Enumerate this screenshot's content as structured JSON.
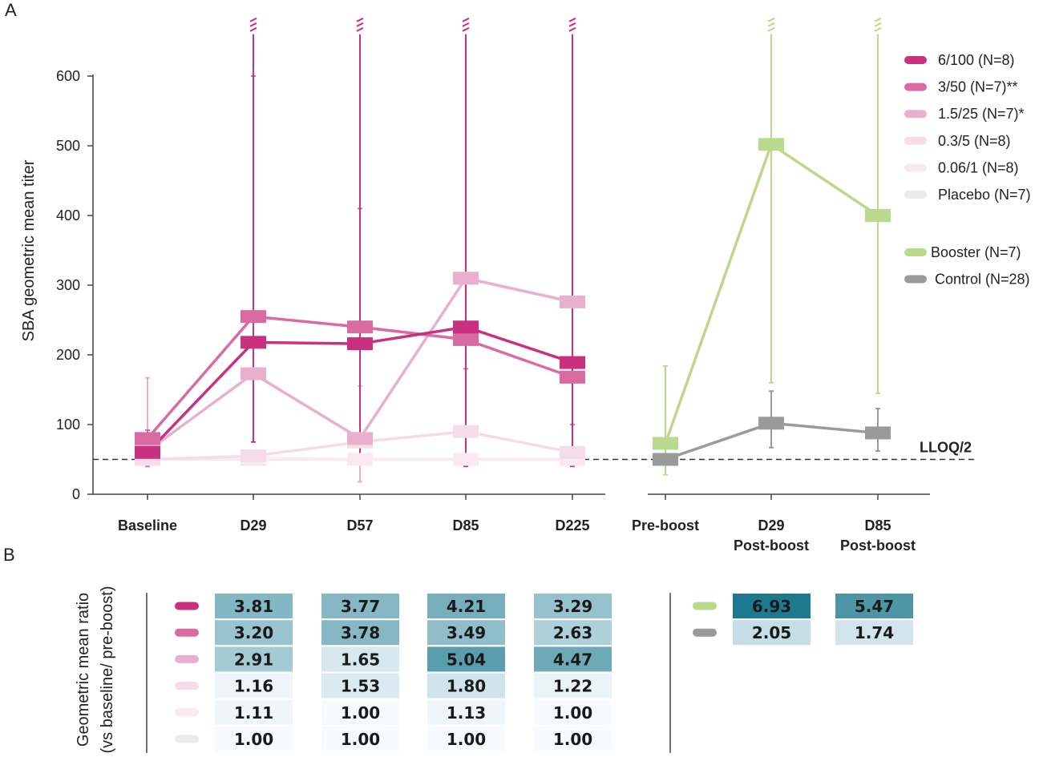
{
  "panel_labels": {
    "a": "A",
    "b": "B"
  },
  "chart_data": [
    {
      "type": "line",
      "title": "",
      "ylabel": "SBA geometric mean titer",
      "xlabel": "",
      "ylim": [
        0,
        600
      ],
      "yticks": [
        0,
        100,
        200,
        300,
        400,
        500,
        600
      ],
      "lloq": {
        "value": 50,
        "label": "LLOQ/2"
      },
      "left_categories": [
        "Baseline",
        "D29",
        "D57",
        "D85",
        "D225"
      ],
      "right_categories": [
        [
          "Pre-boost"
        ],
        [
          "D29",
          "Post-boost"
        ],
        [
          "D85",
          "Post-boost"
        ]
      ],
      "series": [
        {
          "name": "6/100 (N=8)",
          "color": "#c9307f",
          "side": "left",
          "values": [
            60,
            218,
            216,
            240,
            189
          ],
          "error_high": [
            null,
            660,
            660,
            660,
            660
          ],
          "error_low": [
            null,
            75,
            50,
            40,
            40
          ],
          "truncated": [
            false,
            true,
            true,
            true,
            true
          ]
        },
        {
          "name": "3/50 (N=7)**",
          "color": "#d96ba2",
          "side": "left",
          "values": [
            80,
            255,
            240,
            222,
            168
          ],
          "error_high": [
            92,
            600,
            410,
            180,
            100
          ],
          "error_low": [
            40,
            null,
            null,
            null,
            null
          ],
          "truncated": [
            false,
            false,
            false,
            false,
            false
          ]
        },
        {
          "name": "1.5/25 (N=7)*",
          "color": "#e9b0cd",
          "side": "left",
          "values": [
            62,
            173,
            80,
            310,
            276
          ],
          "error_high": [
            167,
            null,
            155,
            null,
            null
          ],
          "error_low": [
            40,
            null,
            18,
            null,
            null
          ],
          "truncated": [
            false,
            false,
            false,
            false,
            false
          ]
        },
        {
          "name": "0.3/5 (N=8)",
          "color": "#f5dce8",
          "side": "left",
          "values": [
            50,
            55,
            75,
            90,
            60
          ],
          "error_high": [
            null,
            null,
            null,
            null,
            null
          ],
          "error_low": [
            null,
            null,
            null,
            null,
            null
          ],
          "truncated": [
            false,
            false,
            false,
            false,
            false
          ]
        },
        {
          "name": "0.06/1 (N=8)",
          "color": "#f9eaf1",
          "side": "left",
          "values": [
            50,
            52,
            50,
            50,
            50
          ],
          "error_high": [
            null,
            null,
            null,
            null,
            null
          ],
          "error_low": [
            null,
            null,
            null,
            null,
            null
          ],
          "truncated": [
            false,
            false,
            false,
            false,
            false
          ]
        },
        {
          "name": "Placebo (N=7)",
          "color": "#ebebeb",
          "side": "left",
          "values": [
            50,
            50,
            50,
            50,
            50
          ],
          "error_high": [
            null,
            null,
            null,
            null,
            null
          ],
          "error_low": [
            null,
            null,
            null,
            null,
            null
          ],
          "truncated": [
            false,
            false,
            false,
            false,
            false
          ]
        },
        {
          "name": "Booster (N=7)",
          "color": "#b9da8d",
          "side": "right",
          "values": [
            73,
            502,
            400
          ],
          "error_high": [
            184,
            660,
            660
          ],
          "error_low": [
            28,
            160,
            145
          ],
          "truncated": [
            false,
            true,
            true
          ]
        },
        {
          "name": "Control (N=28)",
          "color": "#9a9a9a",
          "side": "right",
          "values": [
            50,
            102,
            88
          ],
          "error_high": [
            null,
            148,
            123
          ],
          "error_low": [
            null,
            67,
            62
          ],
          "truncated": [
            false,
            false,
            false
          ]
        }
      ]
    },
    {
      "type": "table",
      "ylabel_lines": [
        "Geometric mean ratio",
        "(vs baseline/ pre-boost)"
      ],
      "left_columns": [
        "D29",
        "D57",
        "D85",
        "D225"
      ],
      "right_columns": [
        "D29 Post-boost",
        "D85 Post-boost"
      ],
      "left_rows": [
        {
          "series": "6/100 (N=8)",
          "color": "#c9307f",
          "values": [
            "3.81",
            "3.77",
            "4.21",
            "3.29"
          ]
        },
        {
          "series": "3/50 (N=7)**",
          "color": "#d96ba2",
          "values": [
            "3.20",
            "3.78",
            "3.49",
            "2.63"
          ]
        },
        {
          "series": "1.5/25 (N=7)*",
          "color": "#e9b0cd",
          "values": [
            "2.91",
            "1.65",
            "5.04",
            "4.47"
          ]
        },
        {
          "series": "0.3/5 (N=8)",
          "color": "#f5dce8",
          "values": [
            "1.16",
            "1.53",
            "1.80",
            "1.22"
          ]
        },
        {
          "series": "0.06/1 (N=8)",
          "color": "#f9eaf1",
          "values": [
            "1.11",
            "1.00",
            "1.13",
            "1.00"
          ]
        },
        {
          "series": "Placebo (N=7)",
          "color": "#ebebeb",
          "values": [
            "1.00",
            "1.00",
            "1.00",
            "1.00"
          ]
        }
      ],
      "right_rows": [
        {
          "series": "Booster (N=7)",
          "color": "#b9da8d",
          "values": [
            "6.93",
            "5.47"
          ]
        },
        {
          "series": "Control (N=28)",
          "color": "#9a9a9a",
          "values": [
            "2.05",
            "1.74"
          ]
        }
      ]
    }
  ]
}
